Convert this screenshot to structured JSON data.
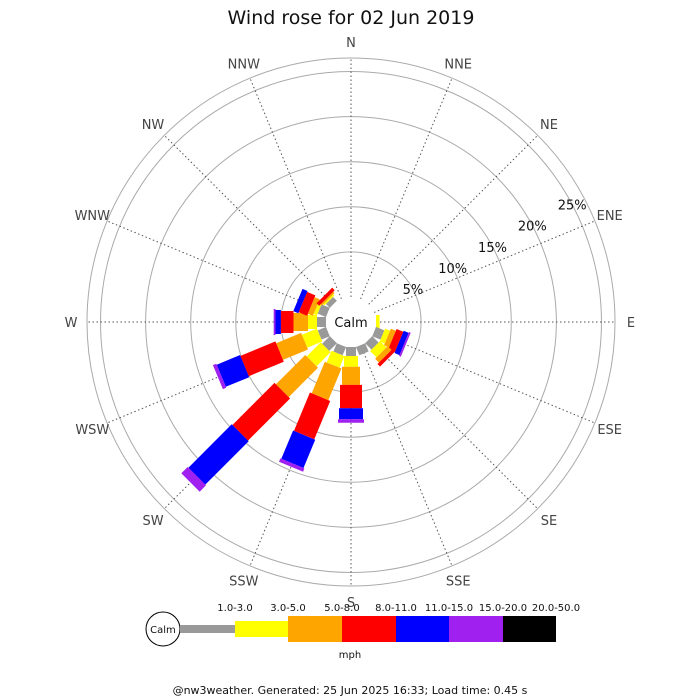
{
  "chart_data": {
    "type": "wind-rose",
    "title": "Wind rose for 02 Jun 2019",
    "directions": [
      "N",
      "NNE",
      "NE",
      "ENE",
      "E",
      "ESE",
      "SE",
      "SSE",
      "S",
      "SSW",
      "SW",
      "WSW",
      "W",
      "WNW",
      "NW",
      "NNW"
    ],
    "ring_values": [
      5,
      10,
      15,
      20,
      25
    ],
    "ring_labels": [
      "5%",
      "10%",
      "15%",
      "20%",
      "25%"
    ],
    "max_percent": 26.5,
    "calm_label": "Calm",
    "speed_bins": [
      {
        "label": "1.0-3.0",
        "color": "#999999"
      },
      {
        "label": "3.0-5.0",
        "color": "#ffff00"
      },
      {
        "label": "5.0-8.0",
        "color": "#ffa500"
      },
      {
        "label": "8.0-11.0",
        "color": "#ff0000"
      },
      {
        "label": "11.0-15.0",
        "color": "#0000ff"
      },
      {
        "label": "15.0-20.0",
        "color": "#a020f0"
      },
      {
        "label": "20.0-50.0",
        "color": "#000000"
      }
    ],
    "units": "mph",
    "values_percent": [
      [
        0.0,
        0.0,
        0.0,
        0.0,
        0.0,
        0.0,
        0.0
      ],
      [
        0.0,
        0.0,
        0.0,
        0.0,
        0.0,
        0.0,
        0.0
      ],
      [
        0.0,
        0.0,
        0.0,
        0.0,
        0.0,
        0.0,
        0.0
      ],
      [
        0.0,
        0.0,
        0.0,
        0.0,
        0.0,
        0.0,
        0.0
      ],
      [
        0.0,
        0.4,
        0.0,
        0.0,
        0.0,
        0.0,
        0.0
      ],
      [
        1.0,
        0.6,
        0.6,
        0.8,
        0.6,
        0.2,
        0.0
      ],
      [
        1.0,
        1.0,
        0.6,
        0.4,
        0.0,
        0.0,
        0.0
      ],
      [
        1.0,
        0.0,
        0.0,
        0.0,
        0.0,
        0.0,
        0.0
      ],
      [
        1.0,
        1.2,
        2.0,
        2.6,
        1.2,
        0.4,
        0.0
      ],
      [
        1.0,
        1.4,
        3.8,
        4.6,
        3.4,
        0.4,
        0.0
      ],
      [
        1.2,
        2.2,
        4.6,
        6.6,
        6.8,
        1.0,
        0.0
      ],
      [
        1.0,
        1.8,
        3.0,
        4.2,
        2.8,
        0.4,
        0.0
      ],
      [
        1.0,
        1.0,
        1.6,
        1.4,
        0.6,
        0.2,
        0.0
      ],
      [
        1.0,
        0.4,
        0.6,
        1.0,
        0.6,
        0.0,
        0.0
      ],
      [
        0.6,
        0.2,
        0.2,
        0.4,
        0.0,
        0.0,
        0.0
      ],
      [
        0.0,
        0.0,
        0.0,
        0.0,
        0.0,
        0.0,
        0.0
      ]
    ]
  },
  "footer": "@nw3weather. Generated: 25 Jun 2025 16:33; Load time: 0.45 s"
}
